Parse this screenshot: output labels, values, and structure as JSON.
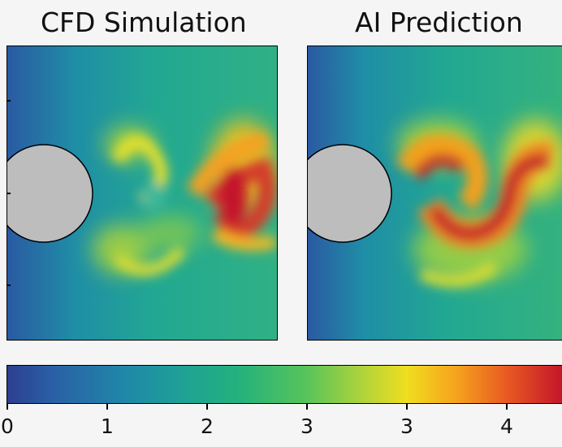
{
  "panels": [
    {
      "title": "CFD Simulation"
    },
    {
      "title": "AI Prediction"
    }
  ],
  "colorbar": {
    "tick_labels": [
      "0",
      "1",
      "2",
      "3",
      "3",
      "4"
    ],
    "colors": [
      "#2c3f8f",
      "#1f8aa8",
      "#25b27c",
      "#a6d23e",
      "#f0de1f",
      "#f6a21e",
      "#c4162a"
    ]
  },
  "obstacle_color": "#bdbdbd"
}
